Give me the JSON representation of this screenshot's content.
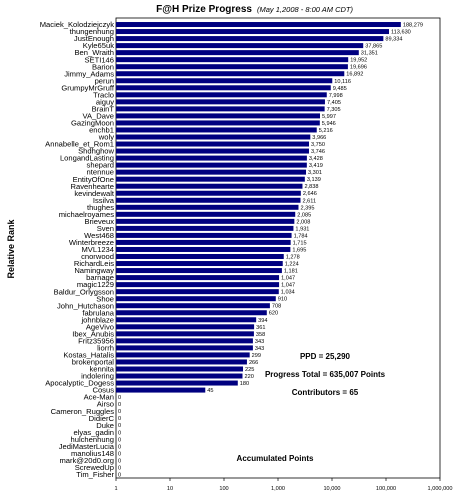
{
  "chart_data": {
    "type": "bar",
    "orientation": "horizontal",
    "title": "F@H Prize Progress",
    "subtitle": "(May 1,2008 -  8:00 AM CDT)",
    "xlabel": "Accumulated Points",
    "ylabel": "Relative Rank",
    "x_scale": "log",
    "xlim": [
      1,
      1000000
    ],
    "x_ticks": [
      "1",
      "10",
      "100",
      "1,000",
      "10,000",
      "100,000",
      "1,000,000"
    ],
    "grid": false,
    "bar_color": "#000080",
    "categories": [
      "Maciek_Kolodziejczyk",
      "thungenhung",
      "JustEnough",
      "Kyle65uk",
      "Ben_Wraith",
      "SETI146",
      "Barion",
      "Jimmy_Adams",
      "perun",
      "GrumpyMrGruff",
      "Traclo",
      "aiguy",
      "BrainT",
      "VA_Dave",
      "GazingMoon",
      "enchb1",
      "woly",
      "Annabelle_et_Rom1",
      "Shdhghow",
      "LongandLasting",
      "shepard",
      "ntennue",
      "EntityOfOne",
      "Ravenhearte",
      "kevindewalt",
      "Issilva",
      "thughes",
      "michaelroyames",
      "Brieveux",
      "Sven",
      "West468",
      "Winterbreeze",
      "MVL1234",
      "cnorwood",
      "RichardLeis",
      "Namingway",
      "barnage",
      "magic1229",
      "Baldur_Orlygsson",
      "Shoe",
      "John_Hutchason",
      "fabrulana",
      "johnblaze",
      "AgeVivo",
      "Ibex_Anubis",
      "Fritz35956",
      "liorrh",
      "Kostas_Hatalis",
      "brokenportal",
      "kennita",
      "indolering",
      "Apocalyptic_Dogess",
      "Cosus",
      "Ace-Man",
      "Airso",
      "Cameron_Ruggles",
      "DidierC",
      "Duke",
      "elyas_gadin",
      "hulchenhung",
      "JediMasterLucia",
      "manolius148",
      "mark@20d0.org",
      "ScrewedUp",
      "Tim_Fisher"
    ],
    "values": [
      188279,
      113630,
      89334,
      37865,
      31351,
      19952,
      19696,
      16892,
      10116,
      9485,
      7998,
      7405,
      7305,
      5997,
      5946,
      5216,
      3966,
      3750,
      3746,
      3428,
      3419,
      3301,
      3139,
      2838,
      2646,
      2611,
      2395,
      2085,
      2008,
      1931,
      1784,
      1715,
      1695,
      1278,
      1224,
      1181,
      1047,
      1047,
      1034,
      910,
      708,
      620,
      394,
      361,
      358,
      343,
      343,
      299,
      266,
      225,
      220,
      180,
      45,
      0,
      0,
      0,
      0,
      0,
      0,
      0,
      0,
      0,
      0,
      0,
      0
    ],
    "value_labels": [
      "188,279",
      "113,630",
      "89,334",
      "37,865",
      "31,351",
      "19,952",
      "19,696",
      "16,892",
      "10,116",
      "9,485",
      "7,998",
      "7,405",
      "7,305",
      "5,997",
      "5,946",
      "5,216",
      "3,966",
      "3,750",
      "3,746",
      "3,428",
      "3,419",
      "3,301",
      "3,139",
      "2,838",
      "2,646",
      "2,611",
      "2,395",
      "2,085",
      "2,008",
      "1,931",
      "1,784",
      "1,715",
      "1,695",
      "1,278",
      "1,224",
      "1,181",
      "1,047",
      "1,047",
      "1,034",
      "910",
      "708",
      "620",
      "394",
      "361",
      "358",
      "343",
      "343",
      "299",
      "266",
      "225",
      "220",
      "180",
      "45",
      "0",
      "0",
      "0",
      "0",
      "0",
      "0",
      "0",
      "0",
      "0",
      "0",
      "0",
      "0"
    ],
    "annotations": [
      "PPD = 25,290",
      "Progress Total = 635,007 Points",
      "Contributors = 65"
    ]
  }
}
